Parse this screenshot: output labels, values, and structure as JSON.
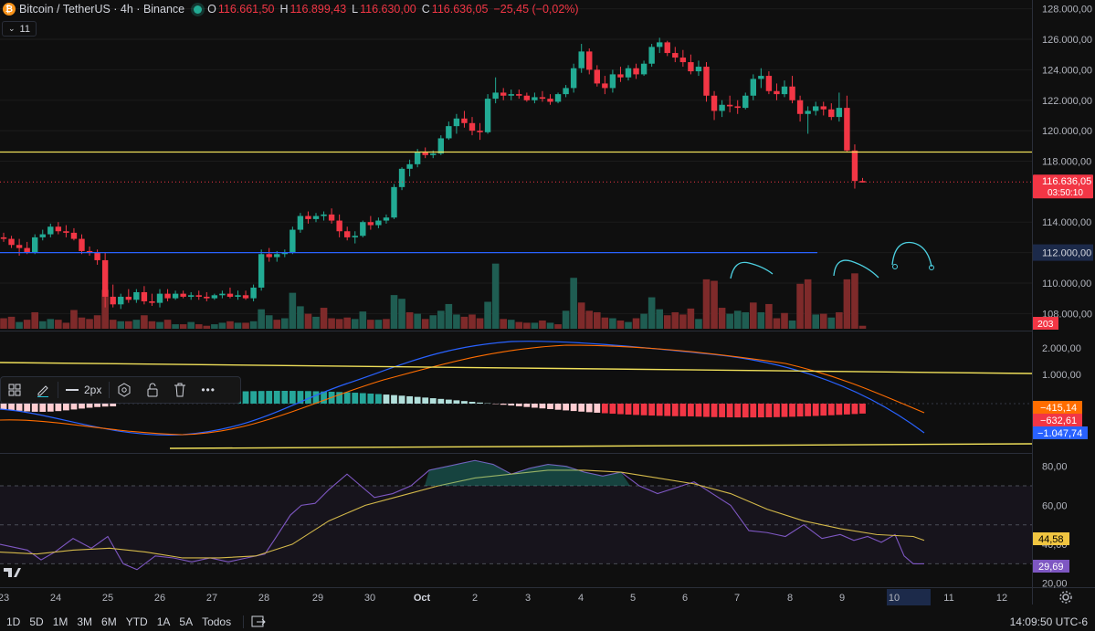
{
  "header": {
    "coin_icon": "bitcoin-icon",
    "symbol": "Bitcoin / TetherUS · 4h · Binance",
    "o_label": "O",
    "o_value": "116.661,50",
    "h_label": "H",
    "h_value": "116.899,43",
    "l_label": "L",
    "l_value": "116.630,00",
    "c_label": "C",
    "c_value": "116.636,05",
    "change": "−25,45 (−0,02%)",
    "interval_badge": "11"
  },
  "colors": {
    "up": "#22ab94",
    "down": "#f23645",
    "vol_up": "#1f5d52",
    "vol_down": "#7e2a2a",
    "yellow": "#f0e05a",
    "blue": "#2962ff",
    "rsi": "#7e57c2",
    "bg": "#0f0f0f",
    "grid": "#1c1c1c",
    "text": "#b2b5be"
  },
  "price_axis": {
    "labels": [
      "128.000,00",
      "126.000,00",
      "124.000,00",
      "122.000,00",
      "120.000,00",
      "118.000,00",
      "114.000,00",
      "112.000,00",
      "110.000,00",
      "108.000,00"
    ],
    "current_price": "116.636,05",
    "countdown": "03:50:10",
    "volume_badge": "203",
    "blue_level": "112.000,00"
  },
  "macd_axis": {
    "labels": [
      "2.000,00",
      "1.000,00"
    ],
    "badge1": "−415,14",
    "badge2": "−632,61",
    "badge3": "−1.047,74"
  },
  "rsi_axis": {
    "labels": [
      "80,00",
      "60,00",
      "40,00",
      "20,00"
    ],
    "badge_ma": "44,58",
    "badge_rsi": "29,69"
  },
  "time_axis": [
    "23",
    "24",
    "25",
    "26",
    "27",
    "28",
    "29",
    "30",
    "Oct",
    "2",
    "3",
    "4",
    "5",
    "6",
    "7",
    "8",
    "9",
    "10",
    "11",
    "12"
  ],
  "toolbar": {
    "stroke_label": "2px",
    "icons": [
      "layout-icon",
      "pencil-icon",
      "line-style-icon",
      "settings-hex-icon",
      "lock-icon",
      "trash-icon",
      "more-icon"
    ]
  },
  "ranges": [
    "1D",
    "5D",
    "1M",
    "3M",
    "6M",
    "YTD",
    "1A",
    "5A",
    "Todos"
  ],
  "clock": "14:09:50 UTC-6",
  "chart_data": {
    "type": "candlestick",
    "price_range": [
      107000,
      128400
    ],
    "candles": [
      [
        113000,
        113300,
        112700,
        112900
      ],
      [
        112900,
        113100,
        112300,
        112500
      ],
      [
        112500,
        112900,
        111800,
        112300
      ],
      [
        112300,
        112700,
        111900,
        112000
      ],
      [
        112000,
        113200,
        111900,
        113000
      ],
      [
        113000,
        113500,
        112800,
        113200
      ],
      [
        113200,
        113900,
        113000,
        113700
      ],
      [
        113700,
        114000,
        113200,
        113400
      ],
      [
        113400,
        113800,
        113000,
        113300
      ],
      [
        113300,
        113600,
        112800,
        112900
      ],
      [
        112900,
        113200,
        111900,
        112100
      ],
      [
        112100,
        112400,
        111800,
        112000
      ],
      [
        112000,
        112200,
        111200,
        111500
      ],
      [
        111500,
        112000,
        108400,
        109100
      ],
      [
        109100,
        109900,
        108400,
        108600
      ],
      [
        108600,
        109300,
        108300,
        109100
      ],
      [
        109100,
        109600,
        108700,
        108900
      ],
      [
        108900,
        109600,
        108700,
        109400
      ],
      [
        109400,
        109800,
        108600,
        108800
      ],
      [
        108800,
        109300,
        108500,
        108700
      ],
      [
        108700,
        109600,
        108400,
        109300
      ],
      [
        109300,
        109600,
        108800,
        109000
      ],
      [
        109000,
        109500,
        108900,
        109300
      ],
      [
        109300,
        109500,
        109000,
        109100
      ],
      [
        109100,
        109400,
        108900,
        109200
      ],
      [
        109200,
        109500,
        108900,
        109100
      ],
      [
        109100,
        109400,
        108800,
        109000
      ],
      [
        109000,
        109300,
        108900,
        109200
      ],
      [
        109200,
        109500,
        109000,
        109300
      ],
      [
        109300,
        109700,
        109000,
        109100
      ],
      [
        109100,
        109500,
        108900,
        109200
      ],
      [
        109200,
        109500,
        108900,
        109000
      ],
      [
        109000,
        109900,
        108800,
        109700
      ],
      [
        109700,
        112200,
        109500,
        111900
      ],
      [
        111900,
        112300,
        111400,
        111700
      ],
      [
        111700,
        112100,
        111400,
        111900
      ],
      [
        111900,
        112200,
        111700,
        112000
      ],
      [
        112000,
        113700,
        111900,
        113500
      ],
      [
        113500,
        114600,
        113300,
        114400
      ],
      [
        114400,
        114700,
        113900,
        114200
      ],
      [
        114200,
        114600,
        114000,
        114400
      ],
      [
        114400,
        114700,
        114100,
        114500
      ],
      [
        114500,
        114900,
        113900,
        114100
      ],
      [
        114100,
        114500,
        113000,
        113400
      ],
      [
        113400,
        113700,
        112800,
        113000
      ],
      [
        113000,
        113400,
        112600,
        113100
      ],
      [
        113100,
        114100,
        113000,
        114000
      ],
      [
        114000,
        114400,
        113500,
        113800
      ],
      [
        113800,
        114300,
        113600,
        114100
      ],
      [
        114100,
        114500,
        113900,
        114300
      ],
      [
        114300,
        116500,
        114200,
        116300
      ],
      [
        116300,
        117600,
        116100,
        117500
      ],
      [
        117500,
        118100,
        117000,
        117800
      ],
      [
        117800,
        118800,
        117600,
        118600
      ],
      [
        118600,
        118900,
        118200,
        118400
      ],
      [
        118400,
        118700,
        118200,
        118500
      ],
      [
        118500,
        119700,
        118400,
        119500
      ],
      [
        119500,
        120600,
        119400,
        120300
      ],
      [
        120300,
        121100,
        119800,
        120800
      ],
      [
        120800,
        121300,
        120200,
        120500
      ],
      [
        120500,
        120900,
        119700,
        120000
      ],
      [
        120000,
        120500,
        119400,
        119900
      ],
      [
        119900,
        122400,
        119800,
        122100
      ],
      [
        122100,
        123500,
        121800,
        122500
      ],
      [
        122500,
        122800,
        122000,
        122300
      ],
      [
        122300,
        122700,
        122000,
        122400
      ],
      [
        122400,
        122700,
        122100,
        122300
      ],
      [
        122300,
        122500,
        121900,
        122000
      ],
      [
        122000,
        122500,
        121800,
        122200
      ],
      [
        122200,
        122600,
        121900,
        122100
      ],
      [
        122100,
        122400,
        121700,
        121900
      ],
      [
        121900,
        122500,
        121800,
        122400
      ],
      [
        122400,
        123000,
        122200,
        122800
      ],
      [
        122800,
        124400,
        122500,
        124100
      ],
      [
        124100,
        125700,
        123800,
        125200
      ],
      [
        125200,
        125400,
        123700,
        124000
      ],
      [
        124000,
        124300,
        122900,
        123100
      ],
      [
        123100,
        123600,
        122400,
        122800
      ],
      [
        122800,
        124000,
        122500,
        123700
      ],
      [
        123700,
        124200,
        123200,
        123500
      ],
      [
        123500,
        124300,
        123300,
        124100
      ],
      [
        124100,
        124400,
        123400,
        123700
      ],
      [
        123700,
        124600,
        123600,
        124400
      ],
      [
        124400,
        125700,
        124200,
        125500
      ],
      [
        125500,
        126100,
        125100,
        125800
      ],
      [
        125800,
        125900,
        124900,
        125100
      ],
      [
        125100,
        125500,
        124500,
        124800
      ],
      [
        124800,
        125300,
        124200,
        124500
      ],
      [
        124500,
        125000,
        123700,
        123900
      ],
      [
        123900,
        124600,
        123600,
        124200
      ],
      [
        124200,
        124500,
        121900,
        122300
      ],
      [
        122300,
        122600,
        120700,
        121300
      ],
      [
        121300,
        122000,
        120900,
        121700
      ],
      [
        121700,
        122300,
        121200,
        121600
      ],
      [
        121600,
        122000,
        121100,
        121500
      ],
      [
        121500,
        122500,
        121400,
        122300
      ],
      [
        122300,
        123700,
        122000,
        123400
      ],
      [
        123400,
        124100,
        122800,
        123600
      ],
      [
        123600,
        123900,
        122400,
        122600
      ],
      [
        122600,
        123100,
        122000,
        122400
      ],
      [
        122400,
        123300,
        122200,
        122900
      ],
      [
        122900,
        123600,
        121800,
        122000
      ],
      [
        122000,
        122300,
        120600,
        121100
      ],
      [
        121100,
        121600,
        119800,
        121300
      ],
      [
        121300,
        121900,
        121000,
        121600
      ],
      [
        121600,
        121900,
        121000,
        121400
      ],
      [
        121400,
        121800,
        120700,
        120900
      ],
      [
        120900,
        122500,
        120600,
        121500
      ],
      [
        121500,
        122300,
        118600,
        118700
      ],
      [
        118700,
        119100,
        116200,
        116700
      ],
      [
        116700,
        116900,
        116600,
        116600
      ]
    ],
    "volume": [
      [
        "d",
        14
      ],
      [
        "d",
        16
      ],
      [
        "u",
        9
      ],
      [
        "d",
        12
      ],
      [
        "d",
        22
      ],
      [
        "u",
        10
      ],
      [
        "u",
        13
      ],
      [
        "d",
        12
      ],
      [
        "d",
        8
      ],
      [
        "d",
        25
      ],
      [
        "d",
        15
      ],
      [
        "d",
        13
      ],
      [
        "d",
        18
      ],
      [
        "d",
        52
      ],
      [
        "d",
        12
      ],
      [
        "u",
        10
      ],
      [
        "d",
        10
      ],
      [
        "u",
        12
      ],
      [
        "d",
        18
      ],
      [
        "d",
        10
      ],
      [
        "u",
        9
      ],
      [
        "d",
        12
      ],
      [
        "u",
        6
      ],
      [
        "d",
        6
      ],
      [
        "u",
        9
      ],
      [
        "d",
        6
      ],
      [
        "d",
        4
      ],
      [
        "u",
        6
      ],
      [
        "u",
        8
      ],
      [
        "d",
        10
      ],
      [
        "u",
        8
      ],
      [
        "d",
        8
      ],
      [
        "u",
        10
      ],
      [
        "u",
        26
      ],
      [
        "u",
        18
      ],
      [
        "d",
        12
      ],
      [
        "u",
        14
      ],
      [
        "u",
        48
      ],
      [
        "u",
        30
      ],
      [
        "d",
        20
      ],
      [
        "u",
        16
      ],
      [
        "d",
        28
      ],
      [
        "d",
        14
      ],
      [
        "d",
        13
      ],
      [
        "d",
        15
      ],
      [
        "u",
        13
      ],
      [
        "u",
        23
      ],
      [
        "d",
        12
      ],
      [
        "u",
        12
      ],
      [
        "d",
        13
      ],
      [
        "u",
        45
      ],
      [
        "u",
        40
      ],
      [
        "d",
        22
      ],
      [
        "u",
        20
      ],
      [
        "d",
        13
      ],
      [
        "u",
        18
      ],
      [
        "u",
        24
      ],
      [
        "u",
        33
      ],
      [
        "u",
        19
      ],
      [
        "d",
        16
      ],
      [
        "d",
        19
      ],
      [
        "d",
        14
      ],
      [
        "u",
        36
      ],
      [
        "u",
        87
      ],
      [
        "d",
        13
      ],
      [
        "u",
        12
      ],
      [
        "d",
        9
      ],
      [
        "d",
        8
      ],
      [
        "u",
        8
      ],
      [
        "d",
        11
      ],
      [
        "u",
        8
      ],
      [
        "d",
        6
      ],
      [
        "u",
        24
      ],
      [
        "u",
        68
      ],
      [
        "d",
        35
      ],
      [
        "d",
        24
      ],
      [
        "d",
        22
      ],
      [
        "d",
        15
      ],
      [
        "u",
        14
      ],
      [
        "d",
        11
      ],
      [
        "u",
        9
      ],
      [
        "d",
        14
      ],
      [
        "u",
        20
      ],
      [
        "u",
        42
      ],
      [
        "u",
        26
      ],
      [
        "d",
        18
      ],
      [
        "d",
        22
      ],
      [
        "d",
        19
      ],
      [
        "d",
        27
      ],
      [
        "u",
        13
      ],
      [
        "d",
        66
      ],
      [
        "d",
        64
      ],
      [
        "d",
        28
      ],
      [
        "u",
        20
      ],
      [
        "u",
        24
      ],
      [
        "u",
        22
      ],
      [
        "d",
        35
      ],
      [
        "u",
        22
      ],
      [
        "d",
        33
      ],
      [
        "d",
        14
      ],
      [
        "d",
        21
      ],
      [
        "u",
        11
      ],
      [
        "d",
        60
      ],
      [
        "d",
        66
      ],
      [
        "u",
        19
      ],
      [
        "d",
        20
      ],
      [
        "u",
        15
      ],
      [
        "d",
        22
      ],
      [
        "d",
        66
      ],
      [
        "d",
        74
      ],
      [
        "d",
        4
      ]
    ],
    "lines": {
      "yellow_level": 118600,
      "blue_level": 112000
    }
  }
}
